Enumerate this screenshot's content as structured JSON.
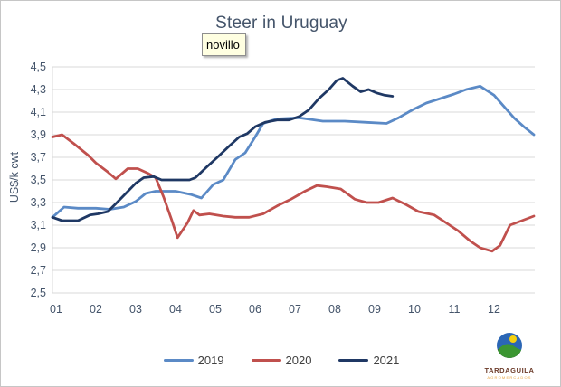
{
  "window": {
    "background": "#ffffff",
    "border_color": "#c6c6c6"
  },
  "tooltip": {
    "text": "novillo",
    "background": "#FFFFE1"
  },
  "logo": {
    "name": "TARDAGUILA",
    "subtext": "AGROMERCADOS"
  },
  "chart_data": {
    "type": "line",
    "title": "Steer in Uruguay",
    "xlabel": "",
    "ylabel": "US$/k cwt",
    "ylim": [
      2.5,
      4.5
    ],
    "grid": "horizontal",
    "legend_position": "bottom",
    "colors": {
      "grid": "#D9D9D9",
      "axis_text": "#44546A"
    },
    "y_ticks": [
      {
        "v": 4.5,
        "label": "4,5"
      },
      {
        "v": 4.3,
        "label": "4,3"
      },
      {
        "v": 4.1,
        "label": "4,1"
      },
      {
        "v": 3.9,
        "label": "3,9"
      },
      {
        "v": 3.7,
        "label": "3,7"
      },
      {
        "v": 3.5,
        "label": "3,5"
      },
      {
        "v": 3.3,
        "label": "3,3"
      },
      {
        "v": 3.1,
        "label": "3,1"
      },
      {
        "v": 2.9,
        "label": "2,9"
      },
      {
        "v": 2.7,
        "label": "2,7"
      },
      {
        "v": 2.5,
        "label": "2,5"
      }
    ],
    "x_ticks": [
      {
        "m": 1,
        "label": "01"
      },
      {
        "m": 2,
        "label": "02"
      },
      {
        "m": 3,
        "label": "03"
      },
      {
        "m": 4,
        "label": "04"
      },
      {
        "m": 5,
        "label": "05"
      },
      {
        "m": 6,
        "label": "06"
      },
      {
        "m": 7,
        "label": "07"
      },
      {
        "m": 8,
        "label": "08"
      },
      {
        "m": 9,
        "label": "09"
      },
      {
        "m": 10,
        "label": "10"
      },
      {
        "m": 11,
        "label": "11"
      },
      {
        "m": 12,
        "label": "12"
      }
    ],
    "series": [
      {
        "name": "2019",
        "color": "#5B8AC6",
        "points": [
          [
            0.91,
            3.17
          ],
          [
            1.2,
            3.26
          ],
          [
            1.55,
            3.25
          ],
          [
            2.0,
            3.25
          ],
          [
            2.35,
            3.24
          ],
          [
            2.7,
            3.26
          ],
          [
            3.0,
            3.31
          ],
          [
            3.25,
            3.38
          ],
          [
            3.5,
            3.4
          ],
          [
            4.0,
            3.4
          ],
          [
            4.4,
            3.37
          ],
          [
            4.65,
            3.34
          ],
          [
            4.95,
            3.46
          ],
          [
            5.2,
            3.5
          ],
          [
            5.5,
            3.68
          ],
          [
            5.75,
            3.74
          ],
          [
            6.0,
            3.88
          ],
          [
            6.2,
            4.0
          ],
          [
            6.55,
            4.04
          ],
          [
            7.1,
            4.05
          ],
          [
            7.7,
            4.02
          ],
          [
            8.25,
            4.02
          ],
          [
            8.8,
            4.01
          ],
          [
            9.3,
            4.0
          ],
          [
            9.6,
            4.05
          ],
          [
            9.95,
            4.12
          ],
          [
            10.3,
            4.18
          ],
          [
            10.65,
            4.22
          ],
          [
            11.0,
            4.26
          ],
          [
            11.3,
            4.3
          ],
          [
            11.65,
            4.33
          ],
          [
            12.0,
            4.25
          ],
          [
            12.3,
            4.13
          ],
          [
            12.5,
            4.05
          ],
          [
            12.75,
            3.97
          ],
          [
            13.0,
            3.9
          ]
        ]
      },
      {
        "name": "2020",
        "color": "#C0504D",
        "points": [
          [
            0.91,
            3.88
          ],
          [
            1.15,
            3.9
          ],
          [
            1.45,
            3.82
          ],
          [
            1.8,
            3.72
          ],
          [
            2.0,
            3.65
          ],
          [
            2.3,
            3.57
          ],
          [
            2.5,
            3.51
          ],
          [
            2.8,
            3.6
          ],
          [
            3.05,
            3.6
          ],
          [
            3.3,
            3.56
          ],
          [
            3.5,
            3.52
          ],
          [
            3.7,
            3.35
          ],
          [
            3.9,
            3.15
          ],
          [
            4.05,
            2.99
          ],
          [
            4.3,
            3.12
          ],
          [
            4.45,
            3.23
          ],
          [
            4.6,
            3.19
          ],
          [
            4.85,
            3.2
          ],
          [
            5.2,
            3.18
          ],
          [
            5.5,
            3.17
          ],
          [
            5.85,
            3.17
          ],
          [
            6.2,
            3.2
          ],
          [
            6.55,
            3.27
          ],
          [
            6.9,
            3.33
          ],
          [
            7.25,
            3.4
          ],
          [
            7.55,
            3.45
          ],
          [
            7.8,
            3.44
          ],
          [
            8.15,
            3.42
          ],
          [
            8.5,
            3.33
          ],
          [
            8.8,
            3.3
          ],
          [
            9.1,
            3.3
          ],
          [
            9.45,
            3.34
          ],
          [
            9.8,
            3.28
          ],
          [
            10.1,
            3.22
          ],
          [
            10.5,
            3.19
          ],
          [
            10.8,
            3.12
          ],
          [
            11.1,
            3.05
          ],
          [
            11.4,
            2.96
          ],
          [
            11.65,
            2.9
          ],
          [
            11.95,
            2.87
          ],
          [
            12.15,
            2.92
          ],
          [
            12.4,
            3.1
          ],
          [
            12.7,
            3.14
          ],
          [
            13.0,
            3.18
          ]
        ]
      },
      {
        "name": "2021",
        "color": "#1F3864",
        "points": [
          [
            0.91,
            3.17
          ],
          [
            1.15,
            3.14
          ],
          [
            1.55,
            3.14
          ],
          [
            1.85,
            3.19
          ],
          [
            2.05,
            3.2
          ],
          [
            2.3,
            3.22
          ],
          [
            2.5,
            3.29
          ],
          [
            2.75,
            3.38
          ],
          [
            3.0,
            3.47
          ],
          [
            3.2,
            3.52
          ],
          [
            3.45,
            3.53
          ],
          [
            3.65,
            3.5
          ],
          [
            4.0,
            3.5
          ],
          [
            4.35,
            3.5
          ],
          [
            4.5,
            3.52
          ],
          [
            4.8,
            3.62
          ],
          [
            5.05,
            3.7
          ],
          [
            5.35,
            3.8
          ],
          [
            5.6,
            3.88
          ],
          [
            5.8,
            3.91
          ],
          [
            6.0,
            3.97
          ],
          [
            6.25,
            4.01
          ],
          [
            6.55,
            4.03
          ],
          [
            6.85,
            4.03
          ],
          [
            7.1,
            4.06
          ],
          [
            7.35,
            4.12
          ],
          [
            7.6,
            4.22
          ],
          [
            7.85,
            4.3
          ],
          [
            8.05,
            4.38
          ],
          [
            8.2,
            4.4
          ],
          [
            8.45,
            4.33
          ],
          [
            8.65,
            4.28
          ],
          [
            8.85,
            4.3
          ],
          [
            9.05,
            4.27
          ],
          [
            9.25,
            4.25
          ],
          [
            9.45,
            4.24
          ]
        ]
      }
    ]
  }
}
